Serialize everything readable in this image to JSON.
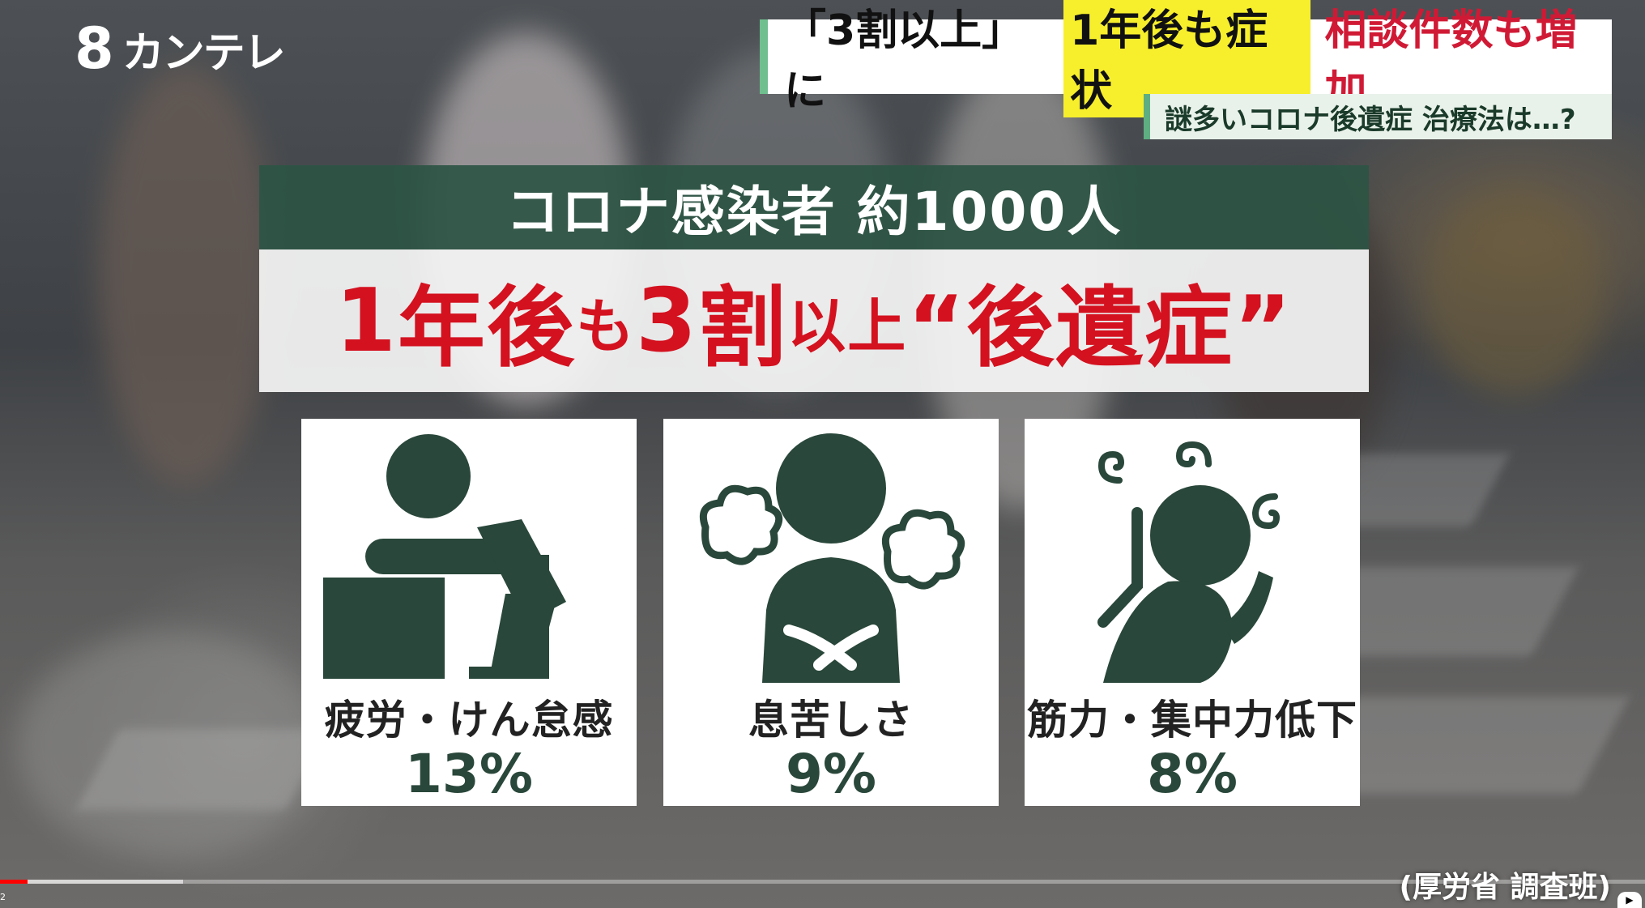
{
  "broadcaster": {
    "logo_mark": "8",
    "logo_text": "カンテレ"
  },
  "headline": {
    "part1": "「3割以上」に",
    "highlight": "1年後も症状",
    "part3": "相談件数も増加"
  },
  "subheadline": "謎多いコロナ後遺症 治療法は…?",
  "graphic": {
    "top_band": "コロナ感染者 約1000人",
    "main_parts": [
      "1",
      "年",
      "後",
      "も",
      "3",
      "割",
      "以",
      "上",
      "“後遺症”"
    ],
    "cards": [
      {
        "label": "疲労・けん怠感",
        "value": "13%",
        "icon": "fatigue-icon"
      },
      {
        "label": "息苦しさ",
        "value": "9%",
        "icon": "shortness-of-breath-icon"
      },
      {
        "label": "筋力・集中力低下",
        "value": "8%",
        "icon": "dizziness-icon"
      }
    ]
  },
  "source": "(厚労省 調査班)",
  "player": {
    "time_indicator": "2",
    "play_label": "▶"
  },
  "colors": {
    "accent_green": "#29473a",
    "headline_red": "#d01a35",
    "highlight_yellow": "#f7ef2c"
  }
}
